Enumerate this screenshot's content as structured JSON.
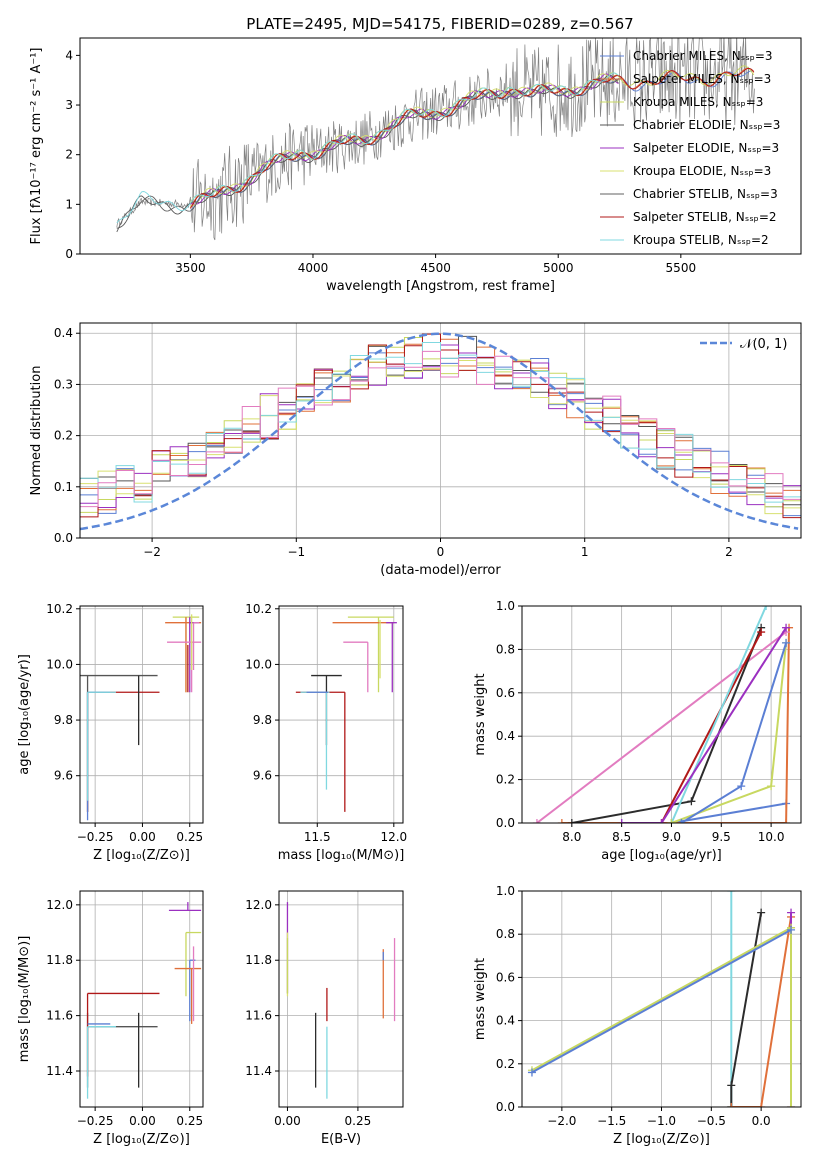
{
  "figure_title": "PLATE=2495, MJD=54175, FIBERID=0289, z=0.567",
  "colors": [
    "#5b7fd4",
    "#e0703a",
    "#c8d860",
    "#555555",
    "#9b30c0",
    "#d8e070",
    "#606060",
    "#b01818",
    "#80d8e0",
    "#e27cc0",
    "#2c2c2c",
    "#e0e050"
  ],
  "chart_data": [
    {
      "id": "spectrum",
      "type": "line",
      "xlabel": "wavelength [Angstrom, rest frame]",
      "ylabel": "Flux [fλ10⁻¹⁷ erg cm⁻² s⁻¹ A⁻¹]",
      "xlim": [
        3050,
        5990
      ],
      "ylim": [
        0,
        4.35
      ],
      "xticks": [
        "3500",
        "4000",
        "4500",
        "5000",
        "5500"
      ],
      "yticks": [
        "0",
        "1",
        "2",
        "3",
        "4"
      ],
      "legend_position": "upper-right",
      "legend": [
        "Chabrier MILES, Nₛₛₚ=3",
        "Salpeter MILES, Nₛₛₚ=3",
        "Kroupa MILES, Nₛₛₚ=3",
        "Chabrier ELODIE, Nₛₛₚ=3",
        "Salpeter ELODIE, Nₛₛₚ=3",
        "Kroupa ELODIE, Nₛₛₚ=3",
        "Chabrier STELIB, Nₛₛₚ=3",
        "Salpeter STELIB, Nₛₛₚ=2",
        "Kroupa STELIB, Nₛₛₚ=2"
      ],
      "continuum": {
        "x": [
          3200,
          3300,
          3500,
          3600,
          3800,
          3950,
          4000,
          4200,
          4400,
          4600,
          4800,
          4900,
          5000,
          5200,
          5400,
          5600,
          5800
        ],
        "y": [
          0.6,
          1.05,
          1.0,
          1.15,
          1.7,
          2.05,
          2.05,
          2.3,
          2.75,
          3.0,
          3.35,
          3.2,
          3.3,
          3.45,
          3.5,
          3.55,
          3.6
        ]
      }
    },
    {
      "id": "residuals",
      "type": "line",
      "xlabel": "(data-model)/error",
      "ylabel": "Normed distribution",
      "xlim": [
        -2.5,
        2.5
      ],
      "ylim": [
        0,
        0.42
      ],
      "xticks": [
        "−2",
        "−1",
        "0",
        "1",
        "2"
      ],
      "yticks": [
        "0.0",
        "0.1",
        "0.2",
        "0.3",
        "0.4"
      ],
      "legend": [
        "𝒩(0, 1)"
      ],
      "legend_position": "upper-right",
      "grid": true
    },
    {
      "id": "age-z",
      "type": "scatter",
      "xlabel": "Z [log₁₀(Z/Z⊙)]",
      "ylabel": "age  [log₁₀(age/yr)]",
      "xlim": [
        -0.33,
        0.32
      ],
      "ylim": [
        9.43,
        10.21
      ],
      "xticks": [
        "−0.25",
        "0.00",
        "0.25"
      ],
      "yticks": [
        "9.6",
        "9.8",
        "10.0",
        "10.2"
      ],
      "grid": true,
      "points": [
        {
          "x": -0.29,
          "y": 9.96,
          "xl": 0.37,
          "xr": 0.37,
          "yl": 0.49,
          "yh": 0.0,
          "c": 3
        },
        {
          "x": -0.29,
          "y": 9.9,
          "xl": 0.0,
          "xr": 0.38,
          "yl": 0.43,
          "yh": 0.0,
          "c": 7
        },
        {
          "x": -0.29,
          "y": 9.9,
          "xl": 0.0,
          "xr": 0.12,
          "yl": 0.46,
          "yh": 0.0,
          "c": 0
        },
        {
          "x": -0.29,
          "y": 9.9,
          "xl": 0.0,
          "xr": 0.15,
          "yl": 0.39,
          "yh": 0.0,
          "c": 8
        },
        {
          "x": -0.02,
          "y": 9.96,
          "xl": 0.0,
          "xr": 0.0,
          "yl": 0.25,
          "yh": 0.0,
          "c": 10
        },
        {
          "x": 0.23,
          "y": 10.17,
          "xl": 0.07,
          "xr": 0.07,
          "yl": 0.27,
          "yh": 0.0,
          "c": 2
        },
        {
          "x": 0.23,
          "y": 10.15,
          "xl": 0.11,
          "xr": 0.08,
          "yl": 0.25,
          "yh": 0.02,
          "c": 1
        },
        {
          "x": 0.25,
          "y": 10.15,
          "xl": 0.0,
          "xr": 0.05,
          "yl": 0.25,
          "yh": 0.02,
          "c": 4
        },
        {
          "x": 0.27,
          "y": 10.15,
          "xl": 0.0,
          "xr": 0.03,
          "yl": 0.17,
          "yh": 0.0,
          "c": 9
        },
        {
          "x": 0.26,
          "y": 10.08,
          "xl": 0.13,
          "xr": 0.05,
          "yl": 0.18,
          "yh": 0.0,
          "c": 9
        },
        {
          "x": 0.24,
          "y": 9.9,
          "xl": 0.0,
          "xr": 0.0,
          "yl": 0.0,
          "yh": 0.17,
          "c": 7
        },
        {
          "x": 0.26,
          "y": 10.1,
          "xl": 0.0,
          "xr": 0.0,
          "yl": 0.12,
          "yh": 0.08,
          "c": 5
        }
      ]
    },
    {
      "id": "age-mass",
      "type": "scatter",
      "xlabel": "mass [log₁₀(M/M⊙)]",
      "ylabel": "",
      "xlim": [
        11.25,
        12.06
      ],
      "ylim": [
        9.43,
        10.21
      ],
      "xticks": [
        "11.5",
        "12.0"
      ],
      "yticks": [
        "9.6",
        "9.8",
        "10.0",
        "10.2"
      ],
      "grid": true,
      "points": [
        {
          "x": 11.56,
          "y": 9.96,
          "xl": 0.1,
          "xr": 0.1,
          "yl": 0.25,
          "yh": 0.0,
          "c": 10
        },
        {
          "x": 11.68,
          "y": 9.9,
          "xl": 0.32,
          "xr": 0.0,
          "yl": 0.43,
          "yh": 0.0,
          "c": 7
        },
        {
          "x": 11.56,
          "y": 9.9,
          "xl": 0.17,
          "xr": 0.02,
          "yl": 0.35,
          "yh": 0.0,
          "c": 8
        },
        {
          "x": 11.57,
          "y": 9.9,
          "xl": 0.14,
          "xr": 0.0,
          "yl": 0.0,
          "yh": 0.0,
          "c": 0
        },
        {
          "x": 11.9,
          "y": 10.17,
          "xl": 0.2,
          "xr": 0.1,
          "yl": 0.27,
          "yh": 0.0,
          "c": 2
        },
        {
          "x": 11.8,
          "y": 10.15,
          "xl": 0.2,
          "xr": 0.2,
          "yl": 0.0,
          "yh": 0.0,
          "c": 1
        },
        {
          "x": 11.99,
          "y": 10.15,
          "xl": 0.04,
          "xr": 0.03,
          "yl": 0.25,
          "yh": 0.0,
          "c": 4
        },
        {
          "x": 11.83,
          "y": 10.08,
          "xl": 0.16,
          "xr": 0.0,
          "yl": 0.18,
          "yh": 0.0,
          "c": 9
        },
        {
          "x": 11.91,
          "y": 10.1,
          "xl": 0.0,
          "xr": 0.0,
          "yl": 0.15,
          "yh": 0.06,
          "c": 5
        }
      ]
    },
    {
      "id": "weight-age",
      "type": "line",
      "xlabel": "age  [log₁₀(age/yr)]",
      "ylabel": "mass weight",
      "xlim": [
        7.5,
        10.3
      ],
      "ylim": [
        0,
        1.0
      ],
      "xticks": [
        "8.0",
        "8.5",
        "9.0",
        "9.5",
        "10.0"
      ],
      "yticks": [
        "0.0",
        "0.2",
        "0.4",
        "0.6",
        "0.8",
        "1.0"
      ],
      "grid": true,
      "series": [
        {
          "c": 0,
          "x": [
            10.15,
            9.0,
            8.5
          ],
          "y": [
            0.09,
            0.0,
            0.0
          ]
        },
        {
          "c": 1,
          "x": [
            10.18,
            10.15,
            7.9
          ],
          "y": [
            0.9,
            0.0,
            0.0
          ]
        },
        {
          "c": 9,
          "x": [
            10.15,
            7.65
          ],
          "y": [
            0.88,
            0.0
          ]
        },
        {
          "c": 10,
          "x": [
            9.9,
            9.2,
            8.0
          ],
          "y": [
            0.9,
            0.1,
            0.0
          ]
        },
        {
          "c": 7,
          "x": [
            9.9,
            8.9
          ],
          "y": [
            0.88,
            0.0
          ]
        },
        {
          "c": 8,
          "x": [
            9.95,
            9.0
          ],
          "y": [
            1.0,
            0.0
          ]
        },
        {
          "c": 4,
          "x": [
            10.15,
            8.9,
            8.5
          ],
          "y": [
            0.9,
            0.0,
            0.0
          ]
        },
        {
          "c": 2,
          "x": [
            10.15,
            10.0,
            9.0,
            9.0
          ],
          "y": [
            0.83,
            0.17,
            0.0,
            0.0
          ]
        },
        {
          "c": 0,
          "x": [
            10.15,
            9.7,
            9.1
          ],
          "y": [
            0.83,
            0.17,
            0.0
          ]
        }
      ]
    },
    {
      "id": "mass-z",
      "type": "scatter",
      "xlabel": "Z [log₁₀(Z/Z⊙)]",
      "ylabel": "mass [log₁₀(M/M⊙)]",
      "xlim": [
        -0.33,
        0.32
      ],
      "ylim": [
        11.27,
        12.05
      ],
      "xticks": [
        "−0.25",
        "0.00",
        "0.25"
      ],
      "yticks": [
        "11.4",
        "11.6",
        "11.8",
        "12.0"
      ],
      "grid": true,
      "points": [
        {
          "x": -0.29,
          "y": 11.56,
          "xl": 0.0,
          "xr": 0.37,
          "yl": 0.22,
          "yh": 0.05,
          "c": 3
        },
        {
          "x": -0.29,
          "y": 11.68,
          "xl": 0.0,
          "xr": 0.38,
          "yl": 0.3,
          "yh": 0.0,
          "c": 7
        },
        {
          "x": -0.29,
          "y": 11.57,
          "xl": 0.0,
          "xr": 0.12,
          "yl": 0.0,
          "yh": 0.0,
          "c": 0
        },
        {
          "x": -0.29,
          "y": 11.56,
          "xl": 0.0,
          "xr": 0.15,
          "yl": 0.26,
          "yh": 0.0,
          "c": 8
        },
        {
          "x": -0.02,
          "y": 11.56,
          "xl": 0.0,
          "xr": 0.0,
          "yl": 0.22,
          "yh": 0.05,
          "c": 10
        },
        {
          "x": 0.24,
          "y": 11.98,
          "xl": 0.1,
          "xr": 0.07,
          "yl": 0.0,
          "yh": 0.03,
          "c": 4
        },
        {
          "x": 0.23,
          "y": 11.9,
          "xl": 0.0,
          "xr": 0.08,
          "yl": 0.23,
          "yh": 0.0,
          "c": 2
        },
        {
          "x": 0.26,
          "y": 11.88,
          "xl": 0.0,
          "xr": 0.0,
          "yl": 0.0,
          "yh": 0.0,
          "c": 5
        },
        {
          "x": 0.25,
          "y": 11.8,
          "xl": 0.0,
          "xr": 0.03,
          "yl": 0.22,
          "yh": 0.0,
          "c": 0
        },
        {
          "x": 0.26,
          "y": 11.77,
          "xl": 0.09,
          "xr": 0.05,
          "yl": 0.2,
          "yh": 0.0,
          "c": 1
        },
        {
          "x": 0.27,
          "y": 11.78,
          "xl": 0.0,
          "xr": 0.0,
          "yl": 0.2,
          "yh": 0.07,
          "c": 9
        }
      ]
    },
    {
      "id": "mass-ebv",
      "type": "scatter",
      "xlabel": "E(B-V)",
      "ylabel": "",
      "xlim": [
        -0.03,
        0.41
      ],
      "ylim": [
        11.27,
        12.05
      ],
      "xticks": [
        "0.00",
        "0.25"
      ],
      "yticks": [
        "11.4",
        "11.6",
        "11.8",
        "12.0"
      ],
      "grid": true,
      "points": [
        {
          "x": 0.0,
          "y": 11.98,
          "yl": 0.3,
          "yh": 0.03,
          "c": 4
        },
        {
          "x": 0.0,
          "y": 11.9,
          "yl": 0.23,
          "yh": 0.0,
          "c": 5
        },
        {
          "x": 0.0,
          "y": 11.88,
          "yl": 0.2,
          "yh": 0.0,
          "c": 2
        },
        {
          "x": 0.1,
          "y": 11.56,
          "yl": 0.22,
          "yh": 0.05,
          "c": 10
        },
        {
          "x": 0.14,
          "y": 11.68,
          "yl": 0.1,
          "yh": 0.02,
          "c": 7
        },
        {
          "x": 0.14,
          "y": 11.56,
          "yl": 0.26,
          "yh": 0.0,
          "c": 8
        },
        {
          "x": 0.34,
          "y": 11.77,
          "yl": 0.18,
          "yh": 0.07,
          "c": 1
        },
        {
          "x": 0.34,
          "y": 11.8,
          "yl": 0.0,
          "yh": 0.03,
          "c": 0
        },
        {
          "x": 0.38,
          "y": 11.7,
          "yl": 0.12,
          "yh": 0.18,
          "c": 9
        }
      ]
    },
    {
      "id": "weight-z",
      "type": "line",
      "xlabel": "Z [log₁₀(Z/Z⊙)]",
      "ylabel": "mass weight",
      "xlim": [
        -2.4,
        0.4
      ],
      "ylim": [
        0,
        1.0
      ],
      "xticks": [
        "−2.0",
        "−1.5",
        "−1.0",
        "−0.5",
        "0.0"
      ],
      "yticks": [
        "0.0",
        "0.2",
        "0.4",
        "0.6",
        "0.8",
        "1.0"
      ],
      "grid": true,
      "series": [
        {
          "c": 8,
          "x": [
            -0.3,
            -0.3,
            -0.3
          ],
          "y": [
            1.0,
            0.0,
            0.0
          ]
        },
        {
          "c": 10,
          "x": [
            0.0,
            -0.3,
            -0.3
          ],
          "y": [
            0.9,
            0.1,
            0.0
          ]
        },
        {
          "c": 1,
          "x": [
            0.3,
            0.0,
            -0.3
          ],
          "y": [
            0.88,
            0.0,
            0.0
          ]
        },
        {
          "c": 4,
          "x": [
            0.3,
            0.3
          ],
          "y": [
            0.9,
            0.0
          ]
        },
        {
          "c": 2,
          "x": [
            0.3,
            -2.3
          ],
          "y": [
            0.83,
            0.17
          ]
        },
        {
          "c": 2,
          "x": [
            0.3,
            0.3
          ],
          "y": [
            0.83,
            0.0
          ]
        },
        {
          "c": 0,
          "x": [
            0.3,
            -2.3
          ],
          "y": [
            0.82,
            0.16
          ]
        }
      ]
    }
  ]
}
